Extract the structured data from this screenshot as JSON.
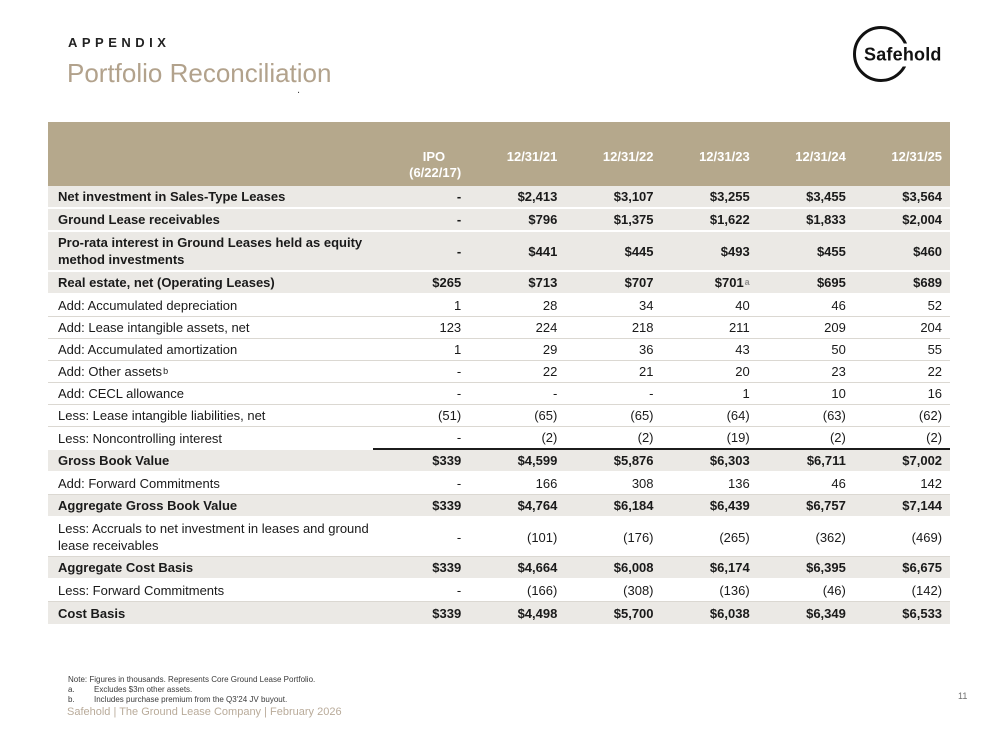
{
  "header": {
    "eyebrow": "APPENDIX",
    "title": "Portfolio Reconciliation",
    "title_dot": ".",
    "logo_text": "Safehold"
  },
  "colors": {
    "header_band": "#b5a88c",
    "bold_row_bg": "#ebe9e5",
    "title_color": "#b2a28c",
    "footer_brand_color": "#b9ab9a",
    "subtotal_rule": "#1c1c1c"
  },
  "table": {
    "columns": [
      "IPO\n(6/22/17)",
      "12/31/21",
      "12/31/22",
      "12/31/23",
      "12/31/24",
      "12/31/25"
    ],
    "rows": [
      {
        "label": "Net investment in Sales-Type Leases",
        "style": "bold",
        "values": [
          "-",
          "$2,413",
          "$3,107",
          "$3,255",
          "$3,455",
          "$3,564"
        ]
      },
      {
        "label": "Ground Lease receivables",
        "style": "bold",
        "values": [
          "-",
          "$796",
          "$1,375",
          "$1,622",
          "$1,833",
          "$2,004"
        ]
      },
      {
        "label": "Pro-rata interest in Ground Leases held as equity method investments",
        "style": "bold",
        "values": [
          "-",
          "$441",
          "$445",
          "$493",
          "$455",
          "$460"
        ]
      },
      {
        "label": "Real estate, net (Operating Leases)",
        "style": "bold",
        "values": [
          "$265",
          "$713",
          "$707",
          "$701^a",
          "$695",
          "$689"
        ]
      },
      {
        "label": "Add: Accumulated depreciation",
        "style": "normal",
        "values": [
          "1",
          "28",
          "34",
          "40",
          "46",
          "52"
        ]
      },
      {
        "label": "Add: Lease intangible assets, net",
        "style": "normal",
        "values": [
          "123",
          "224",
          "218",
          "211",
          "209",
          "204"
        ]
      },
      {
        "label": "Add: Accumulated amortization",
        "style": "normal",
        "values": [
          "1",
          "29",
          "36",
          "43",
          "50",
          "55"
        ]
      },
      {
        "label": "Add: Other assets^b",
        "style": "normal",
        "values": [
          "-",
          "22",
          "21",
          "20",
          "23",
          "22"
        ]
      },
      {
        "label": "Add: CECL allowance",
        "style": "normal",
        "values": [
          "-",
          "-",
          "-",
          "1",
          "10",
          "16"
        ]
      },
      {
        "label": "Less: Lease intangible liabilities, net",
        "style": "normal",
        "values": [
          "(51)",
          "(65)",
          "(65)",
          "(64)",
          "(63)",
          "(62)"
        ]
      },
      {
        "label": "Less: Noncontrolling interest",
        "style": "normal",
        "underline_values": true,
        "values": [
          "-",
          "(2)",
          "(2)",
          "(19)",
          "(2)",
          "(2)"
        ]
      },
      {
        "label": "Gross Book Value",
        "style": "bold",
        "values": [
          "$339",
          "$4,599",
          "$5,876",
          "$6,303",
          "$6,711",
          "$7,002"
        ]
      },
      {
        "label": "Add: Forward Commitments",
        "style": "normal",
        "values": [
          "-",
          "166",
          "308",
          "136",
          "46",
          "142"
        ]
      },
      {
        "label": "Aggregate Gross Book Value",
        "style": "bold",
        "values": [
          "$339",
          "$4,764",
          "$6,184",
          "$6,439",
          "$6,757",
          "$7,144"
        ]
      },
      {
        "label": "Less: Accruals to net investment in leases and ground lease receivables",
        "style": "normal",
        "values": [
          "-",
          "(101)",
          "(176)",
          "(265)",
          "(362)",
          "(469)"
        ]
      },
      {
        "label": "Aggregate Cost Basis",
        "style": "bold",
        "values": [
          "$339",
          "$4,664",
          "$6,008",
          "$6,174",
          "$6,395",
          "$6,675"
        ]
      },
      {
        "label": "Less: Forward Commitments",
        "style": "normal",
        "values": [
          "-",
          "(166)",
          "(308)",
          "(136)",
          "(46)",
          "(142)"
        ]
      },
      {
        "label": "Cost Basis",
        "style": "bold",
        "values": [
          "$339",
          "$4,498",
          "$5,700",
          "$6,038",
          "$6,349",
          "$6,533"
        ]
      }
    ]
  },
  "footnotes": {
    "note": "Note: Figures in thousands. Represents Core Ground Lease Portfolio.",
    "items": [
      {
        "marker": "a.",
        "text": "Excludes $3m other assets."
      },
      {
        "marker": "b.",
        "text": "Includes purchase premium from the Q3'24 JV buyout."
      }
    ]
  },
  "footer": {
    "brand_line": "Safehold | The Ground Lease Company | February 2026",
    "page_number": "11"
  }
}
